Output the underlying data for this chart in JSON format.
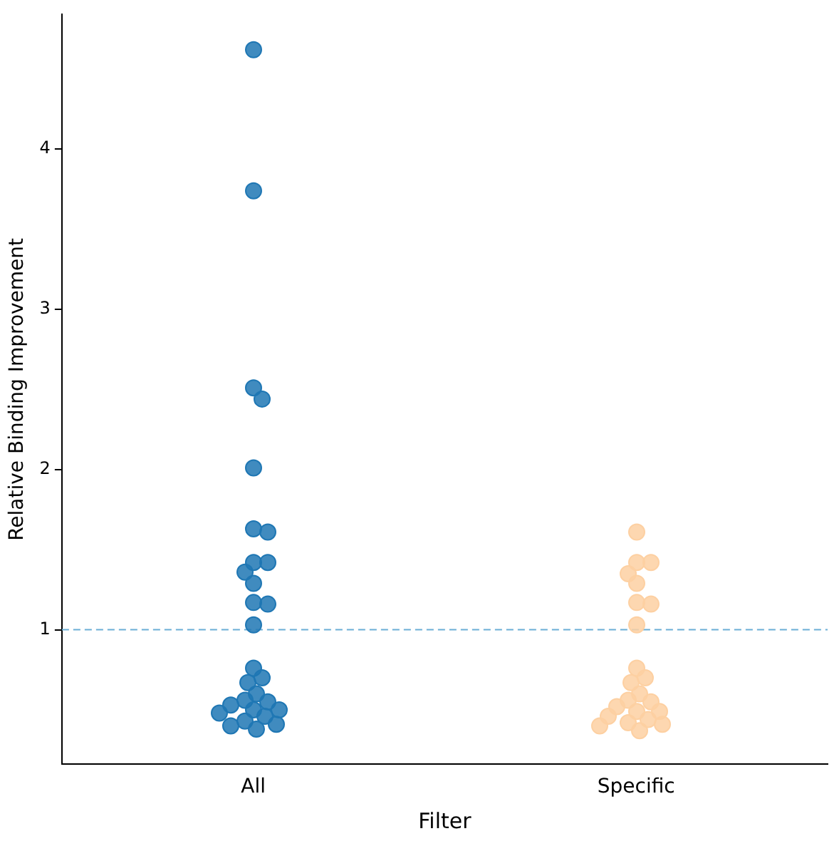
{
  "chart_data": {
    "type": "scatter",
    "xlabel": "Filter",
    "ylabel": "Relative Binding Improvement",
    "categories": [
      "All",
      "Specific"
    ],
    "series": [
      {
        "color": "#1f77b4",
        "x": [
          "All",
          "All",
          "All",
          "All",
          "All",
          "All",
          "All",
          "All",
          "All",
          "All",
          "All",
          "All",
          "All",
          "All",
          "All",
          "All",
          "All",
          "All",
          "All",
          "All",
          "All",
          "All",
          "All",
          "All",
          "All",
          "All",
          "All",
          "All",
          "All"
        ],
        "values": [
          4.62,
          3.74,
          2.51,
          2.44,
          2.01,
          1.63,
          1.61,
          1.42,
          1.42,
          1.36,
          1.29,
          1.17,
          1.16,
          1.03,
          0.76,
          0.7,
          0.67,
          0.6,
          0.56,
          0.55,
          0.53,
          0.5,
          0.5,
          0.48,
          0.46,
          0.43,
          0.41,
          0.4,
          0.38
        ]
      },
      {
        "color": "#fdd0a2",
        "x": [
          "Specific",
          "Specific",
          "Specific",
          "Specific",
          "Specific",
          "Specific",
          "Specific",
          "Specific",
          "Specific",
          "Specific",
          "Specific",
          "Specific",
          "Specific",
          "Specific",
          "Specific",
          "Specific",
          "Specific",
          "Specific",
          "Specific",
          "Specific",
          "Specific",
          "Specific",
          "Specific"
        ],
        "values": [
          1.61,
          1.42,
          1.42,
          1.35,
          1.29,
          1.17,
          1.16,
          1.03,
          0.76,
          0.7,
          0.67,
          0.6,
          0.56,
          0.55,
          0.52,
          0.49,
          0.49,
          0.46,
          0.44,
          0.42,
          0.41,
          0.4,
          0.37
        ]
      }
    ],
    "ylim": [
      0.16,
      4.84
    ],
    "yticks": [
      1,
      2,
      3,
      4
    ],
    "grid": false,
    "legend": false,
    "marker": "circle",
    "ref_lines": [
      {
        "axis": "y",
        "value": 1,
        "color": "#6baed6",
        "line_style": "dashed"
      }
    ]
  }
}
